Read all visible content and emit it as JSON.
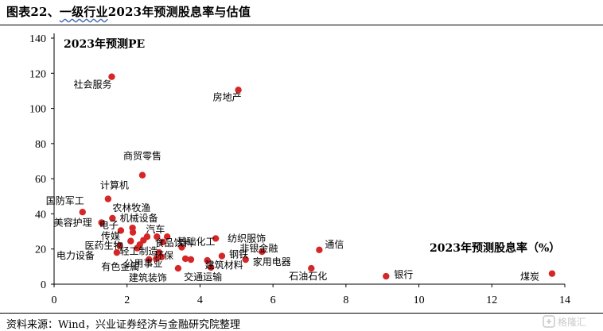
{
  "figure": {
    "title_prefix": "图表22、",
    "title_wavy": "一级行业",
    "title_rest": "2023年预测股息率与估值",
    "source": "资料来源：Wind，兴业证券经济与金融研究院整理",
    "watermark_text": "格隆汇"
  },
  "colors": {
    "point": "#d62728",
    "axis": "#000000"
  },
  "chart_data": {
    "type": "scatter",
    "xlabel": "2023年预测股息率（%）",
    "ylabel": "2023年预测PE",
    "xlim": [
      0,
      14
    ],
    "ylim": [
      0,
      140
    ],
    "xticks": [
      0,
      2,
      4,
      6,
      8,
      10,
      12,
      14
    ],
    "yticks": [
      0,
      20,
      40,
      60,
      80,
      100,
      120,
      140
    ],
    "grid": false,
    "points": [
      {
        "label": "社会服务",
        "x": 1.58,
        "y": 118.0,
        "lx": -48,
        "ly": 14
      },
      {
        "label": "房地产",
        "x": 5.05,
        "y": 110.5,
        "lx": -32,
        "ly": 13
      },
      {
        "label": "商贸零售",
        "x": 2.42,
        "y": 62.0,
        "lx": -24,
        "ly": -20
      },
      {
        "label": "计算机",
        "x": 1.48,
        "y": 48.5,
        "lx": -10,
        "ly": -13
      },
      {
        "label": "国防军工",
        "x": 0.78,
        "y": 41.0,
        "lx": -46,
        "ly": -10
      },
      {
        "label": "农林牧渔",
        "x": 1.6,
        "y": 37.5,
        "lx": 0,
        "ly": -9
      },
      {
        "label": "美容护理",
        "x": 1.3,
        "y": 35.0,
        "lx": -60,
        "ly": 4
      },
      {
        "label": "机械设备",
        "x": 2.15,
        "y": 32.0,
        "lx": -16,
        "ly": -8
      },
      {
        "label": "电子",
        "x": 1.83,
        "y": 30.5,
        "lx": -27,
        "ly": -3
      },
      {
        "label": "传媒",
        "x": 2.16,
        "y": 29.5,
        "lx": -40,
        "ly": 9
      },
      {
        "label": "汽车",
        "x": 2.82,
        "y": 27.0,
        "lx": -14,
        "ly": -5
      },
      {
        "label": "纺织服饰",
        "x": 4.43,
        "y": 26.0,
        "lx": 15,
        "ly": 4
      },
      {
        "label": "食品饮料",
        "x": 2.98,
        "y": 24.0,
        "lx": -10,
        "ly": 5
      },
      {
        "label": "医药生物",
        "x": 1.8,
        "y": 22.0,
        "lx": -44,
        "ly": 4
      },
      {
        "label": "基础化工",
        "x": 3.5,
        "y": 21.0,
        "lx": -6,
        "ly": -3
      },
      {
        "label": "轻工制造",
        "x": 2.28,
        "y": 20.5,
        "lx": -22,
        "ly": 8
      },
      {
        "label": "环保",
        "x": 2.88,
        "y": 18.0,
        "lx": -6,
        "ly": 8
      },
      {
        "label": "非银金融",
        "x": 5.7,
        "y": 18.5,
        "lx": -28,
        "ly": 0
      },
      {
        "label": "通信",
        "x": 7.27,
        "y": 19.5,
        "lx": 7,
        "ly": -3
      },
      {
        "label": "电力设备",
        "x": 1.72,
        "y": 18.0,
        "lx": -76,
        "ly": 8
      },
      {
        "label": "公用事业",
        "x": 2.8,
        "y": 14.5,
        "lx": -40,
        "ly": 10
      },
      {
        "label": "钢铁",
        "x": 4.6,
        "y": 16.0,
        "lx": 9,
        "ly": 2
      },
      {
        "label": "有色金属",
        "x": 2.6,
        "y": 14.0,
        "lx": -60,
        "ly": 13
      },
      {
        "label": "建筑材料",
        "x": 4.2,
        "y": 13.5,
        "lx": -3,
        "ly": 10
      },
      {
        "label": "家用电器",
        "x": 5.25,
        "y": 14.0,
        "lx": 9,
        "ly": 7
      },
      {
        "label": "建筑装饰",
        "x": 3.4,
        "y": 9.0,
        "lx": -62,
        "ly": 16
      },
      {
        "label": "交通运输",
        "x": 4.3,
        "y": 9.5,
        "lx": -34,
        "ly": 16
      },
      {
        "label": "石油石化",
        "x": 7.05,
        "y": 9.0,
        "lx": -28,
        "ly": 14
      },
      {
        "label": "银行",
        "x": 9.1,
        "y": 4.5,
        "lx": 10,
        "ly": 2
      },
      {
        "label": "煤炭",
        "x": 13.65,
        "y": 6.0,
        "lx": -40,
        "ly": 8
      },
      {
        "x": 3.1,
        "y": 27.0
      },
      {
        "x": 2.55,
        "y": 27.0
      },
      {
        "x": 2.95,
        "y": 15.5
      },
      {
        "x": 3.6,
        "y": 14.5
      },
      {
        "x": 3.75,
        "y": 14.0
      },
      {
        "x": 2.1,
        "y": 24.5
      },
      {
        "x": 2.45,
        "y": 25.0
      },
      {
        "x": 2.35,
        "y": 22.5
      }
    ]
  }
}
